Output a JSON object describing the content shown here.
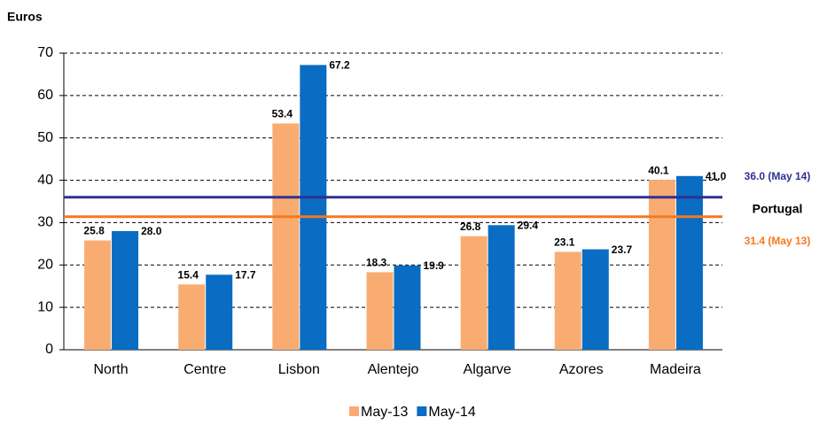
{
  "chart_data": {
    "type": "bar",
    "y_label": "Euros",
    "categories": [
      "North",
      "Centre",
      "Lisbon",
      "Alentejo",
      "Algarve",
      "Azores",
      "Madeira"
    ],
    "series": [
      {
        "name": "May-13",
        "color": "#f9ac72",
        "values": [
          25.8,
          15.4,
          53.4,
          18.3,
          26.8,
          23.1,
          40.1
        ],
        "value_labels": [
          "25.8",
          "15.4",
          "53.4",
          "18.3",
          "26.8",
          "23.1",
          "40.1"
        ]
      },
      {
        "name": "May-14",
        "color": "#0a6cc2",
        "values": [
          28.0,
          17.7,
          67.2,
          19.9,
          29.4,
          23.7,
          41.0
        ],
        "value_labels": [
          "28.0",
          "17.7",
          "67.2",
          "19.9",
          "29.4",
          "23.7",
          "41.0"
        ]
      }
    ],
    "reference_title": "Portugal",
    "reference_lines": [
      {
        "value": 36.0,
        "label": "36.0 (May 14)",
        "color": "#2e3192"
      },
      {
        "value": 31.4,
        "label": "31.4 (May 13)",
        "color": "#f47920"
      }
    ],
    "ylim": [
      0,
      70
    ],
    "yticks": [
      0,
      10,
      20,
      30,
      40,
      50,
      60,
      70
    ],
    "grid": true,
    "legend": "bottom"
  }
}
